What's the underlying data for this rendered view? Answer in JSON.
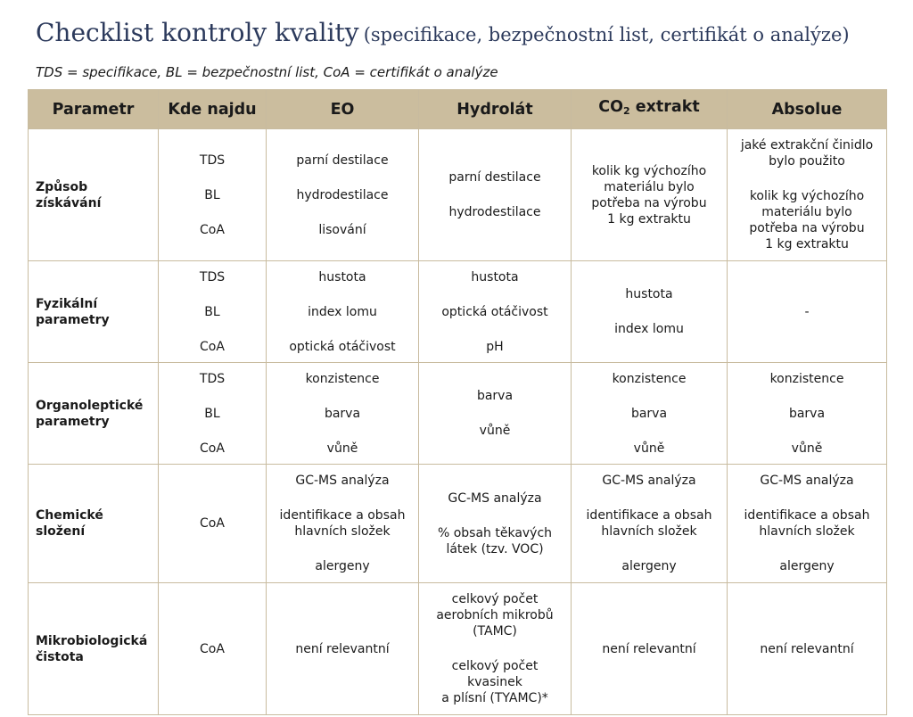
{
  "title": {
    "main": "Checklist kontroly kvality",
    "sub": "(specifikace, bezpečnostní list, certifikát o analýze)"
  },
  "legend": "TDS = specifikace, BL = bezpečnostní list, CoA = certifikát o analýze",
  "headers": {
    "parametr": "Parametr",
    "kde": "Kde najdu",
    "eo": "EO",
    "hydrolat": "Hydrolát",
    "co2_prefix": "CO",
    "co2_sub": "2",
    "co2_suffix": " extrakt",
    "absolue": "Absolue"
  },
  "rows": {
    "ziskavani": {
      "param_line1": "Způsob",
      "param_line2": "získávání",
      "kde": [
        "TDS",
        "BL",
        "CoA"
      ],
      "eo": [
        "parní destilace",
        "hydrodestilace",
        "lisování"
      ],
      "hydrolat": [
        "parní destilace",
        "hydrodestilace"
      ],
      "co2": [
        "kolik kg výchozího",
        "materiálu bylo",
        "potřeba na výrobu",
        "1 kg extraktu"
      ],
      "absolue_a": [
        "jaké extrakční činidlo",
        "bylo použito"
      ],
      "absolue_b": [
        "kolik kg výchozího",
        "materiálu bylo",
        "potřeba na výrobu",
        "1 kg extraktu"
      ]
    },
    "fyzikalni": {
      "param_line1": "Fyzikální",
      "param_line2": "parametry",
      "kde": [
        "TDS",
        "BL",
        "CoA"
      ],
      "eo": [
        "hustota",
        "index lomu",
        "optická otáčivost"
      ],
      "hydrolat": [
        "hustota",
        "optická otáčivost",
        "pH"
      ],
      "co2": [
        "hustota",
        "index lomu"
      ],
      "absolue": "-"
    },
    "organoleptic": {
      "param_line1": "Organoleptické",
      "param_line2": "parametry",
      "kde": [
        "TDS",
        "BL",
        "CoA"
      ],
      "eo": [
        "konzistence",
        "barva",
        "vůně"
      ],
      "hydrolat": [
        "barva",
        "vůně"
      ],
      "co2": [
        "konzistence",
        "barva",
        "vůně"
      ],
      "absolue": [
        "konzistence",
        "barva",
        "vůně"
      ]
    },
    "chemicke": {
      "param_line1": "Chemické",
      "param_line2": "složení",
      "kde": "CoA",
      "eo": [
        "GC-MS analýza",
        "identifikace a obsah",
        "hlavních složek",
        "alergeny"
      ],
      "hydrolat": [
        "GC-MS analýza",
        "% obsah těkavých",
        "látek (tzv. VOC)"
      ],
      "co2": [
        "GC-MS analýza",
        "identifikace a obsah",
        "hlavních složek",
        "alergeny"
      ],
      "absolue": [
        "GC-MS analýza",
        "identifikace a obsah",
        "hlavních složek",
        "alergeny"
      ]
    },
    "mikro": {
      "param_line1": "Mikrobiologická",
      "param_line2": "čistota",
      "kde": "CoA",
      "eo": "není relevantní",
      "hydrolat": [
        "celkový počet",
        "aerobních mikrobů",
        "(TAMC)",
        "celkový počet",
        "kvasinek",
        "a plísní (TYAMC)*"
      ],
      "co2": "není relevantní",
      "absolue": "není relevantní"
    }
  }
}
